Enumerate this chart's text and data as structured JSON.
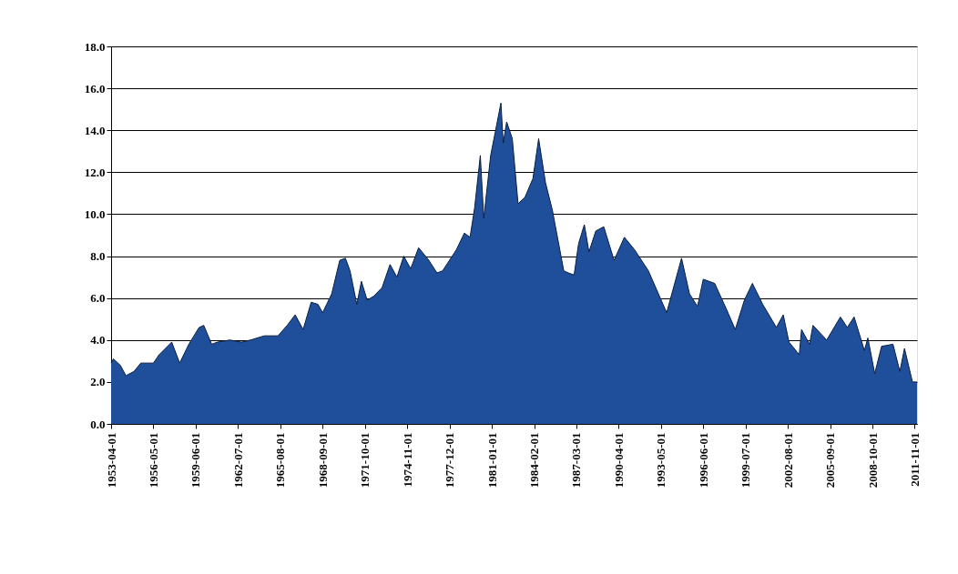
{
  "chart_data": {
    "type": "area",
    "x": [
      "1953-04",
      "1953-06",
      "1953-12",
      "1954-05",
      "1954-12",
      "1955-06",
      "1956-05",
      "1956-10",
      "1957-09",
      "1958-04",
      "1958-12",
      "1959-09",
      "1960-01",
      "1960-08",
      "1961-01",
      "1961-12",
      "1962-10",
      "1963-06",
      "1964-06",
      "1965-06",
      "1966-02",
      "1966-09",
      "1967-04",
      "1967-11",
      "1968-05",
      "1968-09",
      "1969-05",
      "1969-12",
      "1970-05",
      "1970-09",
      "1971-03",
      "1971-07",
      "1971-12",
      "1972-06",
      "1973-01",
      "1973-08",
      "1974-02",
      "1974-08",
      "1975-02",
      "1975-09",
      "1976-06",
      "1977-01",
      "1977-06",
      "1978-06",
      "1979-01",
      "1979-06",
      "1979-10",
      "1980-03",
      "1980-06",
      "1980-12",
      "1981-04",
      "1981-09",
      "1981-11",
      "1982-02",
      "1982-07",
      "1982-12",
      "1983-06",
      "1984-01",
      "1984-06",
      "1984-12",
      "1985-06",
      "1986-04",
      "1986-08",
      "1987-01",
      "1987-05",
      "1987-10",
      "1988-02",
      "1988-08",
      "1989-03",
      "1989-12",
      "1990-09",
      "1991-06",
      "1992-06",
      "1993-10",
      "1994-11",
      "1995-06",
      "1996-01",
      "1996-06",
      "1997-04",
      "1998-02",
      "1998-10",
      "1999-06",
      "2000-01",
      "2000-10",
      "2001-10",
      "2002-04",
      "2002-09",
      "2003-06",
      "2003-08",
      "2004-03",
      "2004-06",
      "2005-06",
      "2006-06",
      "2006-12",
      "2007-06",
      "2008-03",
      "2008-06",
      "2008-12",
      "2009-06",
      "2010-04",
      "2010-10",
      "2011-02",
      "2011-09",
      "2012-01"
    ],
    "values": [
      2.9,
      3.1,
      2.8,
      2.3,
      2.5,
      2.9,
      2.9,
      3.3,
      3.9,
      2.9,
      3.8,
      4.6,
      4.7,
      3.8,
      3.9,
      4.0,
      3.9,
      4.0,
      4.2,
      4.2,
      4.7,
      5.2,
      4.5,
      5.8,
      5.7,
      5.3,
      6.2,
      7.8,
      7.9,
      7.3,
      5.7,
      6.8,
      5.9,
      6.1,
      6.5,
      7.6,
      7.0,
      8.0,
      7.4,
      8.4,
      7.8,
      7.2,
      7.3,
      8.3,
      9.1,
      8.9,
      10.3,
      12.8,
      9.8,
      12.8,
      13.9,
      15.3,
      13.4,
      14.4,
      13.6,
      10.5,
      10.8,
      11.7,
      13.6,
      11.5,
      10.2,
      7.3,
      7.2,
      7.1,
      8.6,
      9.5,
      8.2,
      9.2,
      9.4,
      7.8,
      8.9,
      8.3,
      7.3,
      5.3,
      7.9,
      6.2,
      5.6,
      6.9,
      6.7,
      5.5,
      4.5,
      5.9,
      6.7,
      5.7,
      4.6,
      5.2,
      3.9,
      3.3,
      4.5,
      3.8,
      4.7,
      4.0,
      5.1,
      4.6,
      5.1,
      3.5,
      4.1,
      2.4,
      3.7,
      3.8,
      2.5,
      3.6,
      2.0,
      2.0
    ],
    "color": "#1f4e9a",
    "xlim": [
      "1953-04",
      "2012-01"
    ],
    "xticks": [
      "1953-04-01",
      "1956-05-01",
      "1959-06-01",
      "1962-07-01",
      "1965-08-01",
      "1968-09-01",
      "1971-10-01",
      "1974-11-01",
      "1977-12-01",
      "1981-01-01",
      "1984-02-01",
      "1987-03-01",
      "1990-04-01",
      "1993-05-01",
      "1996-06-01",
      "1999-07-01",
      "2002-08-01",
      "2005-09-01",
      "2008-10-01",
      "2011-11-01"
    ],
    "ylim": [
      0,
      18
    ],
    "yticks": [
      {
        "value": 0,
        "label": "0.0"
      },
      {
        "value": 2,
        "label": "2.0"
      },
      {
        "value": 4,
        "label": "4.0"
      },
      {
        "value": 6,
        "label": "6.0"
      },
      {
        "value": 8,
        "label": "8.0"
      },
      {
        "value": 10,
        "label": "10.0"
      },
      {
        "value": 12,
        "label": "12.0"
      },
      {
        "value": 14,
        "label": "14.0"
      },
      {
        "value": 16,
        "label": "16.0"
      },
      {
        "value": 18,
        "label": "18.0"
      }
    ],
    "grid": "y"
  }
}
